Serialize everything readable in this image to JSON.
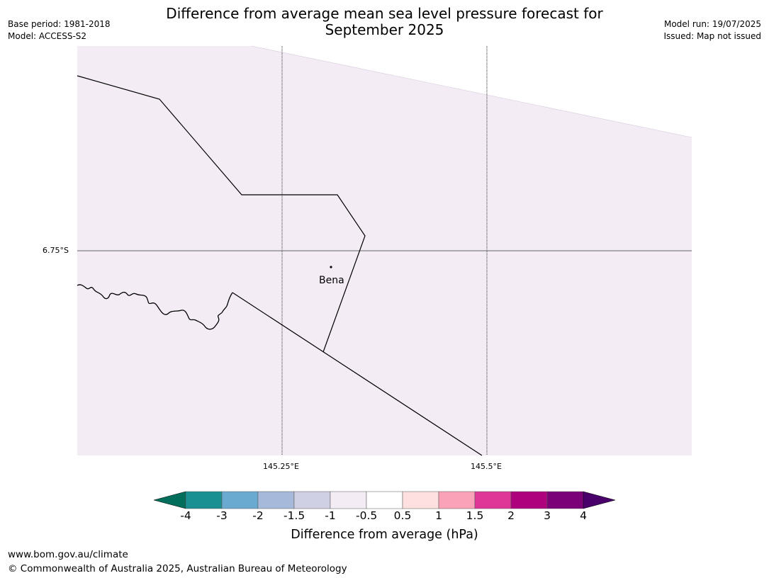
{
  "header": {
    "title_line1": "Difference from average mean sea level pressure forecast for",
    "title_line2": "September 2025",
    "base_period": "Base period: 1981-2018",
    "model": "Model: ACCESS-S2",
    "model_run": "Model run: 19/07/2025",
    "issued": "Issued: Map not issued"
  },
  "map": {
    "lat_label": "6.75°S",
    "lon_labels": [
      "145.25°E",
      "145.5°E"
    ],
    "place_label": "Bena",
    "fill_color": "#f3ecf5"
  },
  "colorbar": {
    "title": "Difference from average (hPa)",
    "tick_labels": [
      "-4",
      "-3",
      "-2",
      "-1.5",
      "-1",
      "-0.5",
      "0.5",
      "1",
      "1.5",
      "2",
      "3",
      "4"
    ],
    "colors": [
      "#1a9093",
      "#6aa9d0",
      "#a7b9da",
      "#d0d0e4",
      "#f3ecf5",
      "#ffffff",
      "#fde0df",
      "#f9a2b8",
      "#df3797",
      "#ae017d",
      "#7a0177"
    ],
    "under_color": "#016d5b",
    "over_color": "#49006a"
  },
  "footer": {
    "url": "www.bom.gov.au/climate",
    "copyright": "© Commonwealth of Australia 2025, Australian Bureau of Meteorology"
  }
}
